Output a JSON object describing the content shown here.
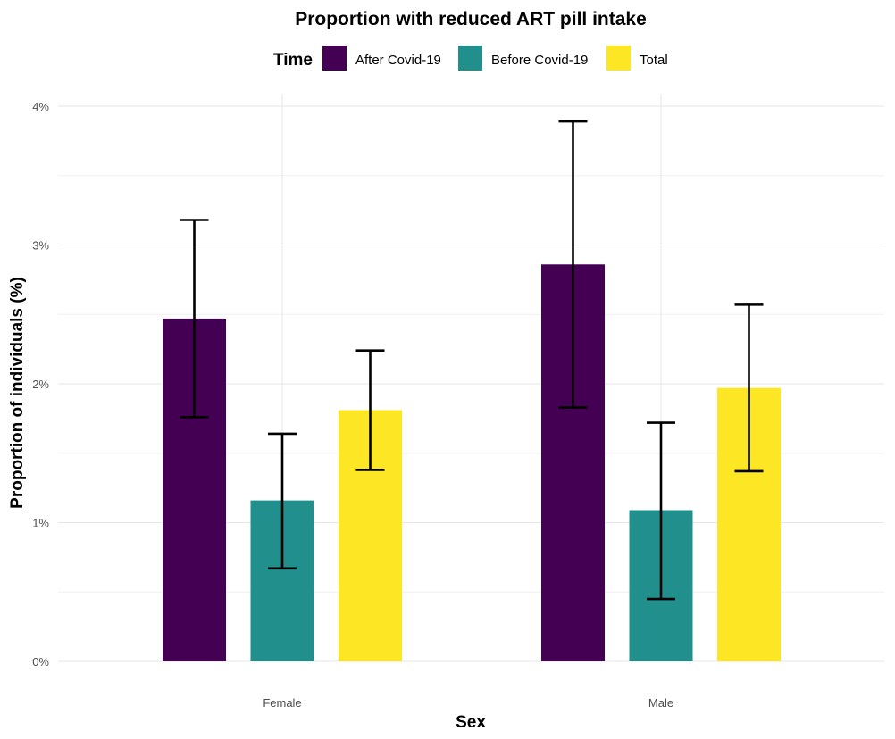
{
  "chart_data": {
    "type": "bar",
    "title": "Proportion with reduced ART pill intake",
    "xlabel": "Sex",
    "ylabel": "Proportion of individuals (%)",
    "categories": [
      "Female",
      "Male"
    ],
    "legend": {
      "title": "Time",
      "position": "top"
    },
    "ylim": [
      0,
      4
    ],
    "yticks": [
      0,
      1,
      2,
      3,
      4
    ],
    "ytick_labels": [
      "0%",
      "1%",
      "2%",
      "3%",
      "4%"
    ],
    "grid": true,
    "series": [
      {
        "name": "After Covid-19",
        "color": "#440154",
        "values": [
          2.47,
          2.86
        ],
        "lower": [
          1.76,
          1.83
        ],
        "upper": [
          3.18,
          3.89
        ]
      },
      {
        "name": "Before Covid-19",
        "color": "#21908C",
        "values": [
          1.16,
          1.09
        ],
        "lower": [
          0.67,
          0.45
        ],
        "upper": [
          1.64,
          1.72
        ]
      },
      {
        "name": "Total",
        "color": "#FDE725",
        "values": [
          1.81,
          1.97
        ],
        "lower": [
          1.38,
          1.37
        ],
        "upper": [
          2.24,
          2.57
        ]
      }
    ]
  }
}
